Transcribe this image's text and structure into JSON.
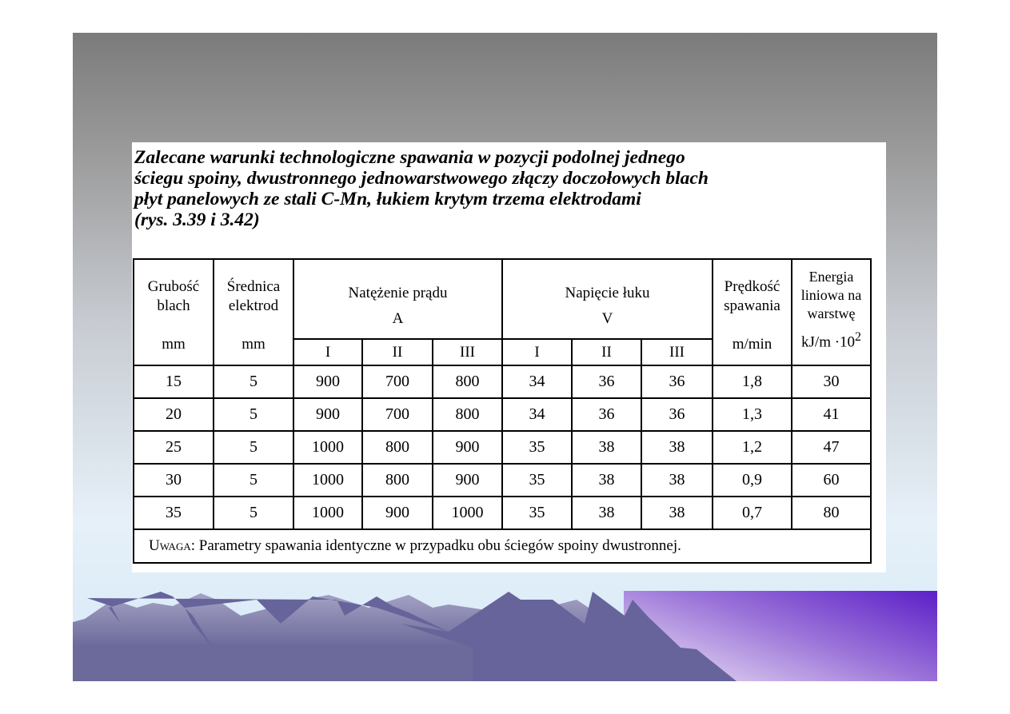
{
  "title_lines": [
    "Zalecane warunki technologiczne spawania w pozycji podolnej jednego",
    "ściegu spoiny, dwustronnego jednowarstwowego złączy doczołowych blach",
    "płyt panelowych ze stali C-Mn, łukiem krytym trzema elektrodami",
    "(rys. 3.39 i 3.42)"
  ],
  "table": {
    "headers": {
      "thickness": {
        "line1": "Grubość",
        "line2": "blach",
        "unit": "mm"
      },
      "diameter": {
        "line1": "Średnica",
        "line2": "elektrod",
        "unit": "mm"
      },
      "current": {
        "label": "Natężenie prądu",
        "unit": "A",
        "sub": [
          "I",
          "II",
          "III"
        ]
      },
      "voltage": {
        "label": "Napięcie łuku",
        "unit": "V",
        "sub": [
          "I",
          "II",
          "III"
        ]
      },
      "speed": {
        "line1": "Prędkość",
        "line2": "spawania",
        "unit": "m/min"
      },
      "energy": {
        "line1": "Energia",
        "line2": "liniowa na",
        "line3": "warstwę",
        "unit": "kJ/m ·10",
        "unit_sup": "2"
      }
    },
    "rows": [
      [
        "15",
        "5",
        "900",
        "700",
        "800",
        "34",
        "36",
        "36",
        "1,8",
        "30"
      ],
      [
        "20",
        "5",
        "900",
        "700",
        "800",
        "34",
        "36",
        "36",
        "1,3",
        "41"
      ],
      [
        "25",
        "5",
        "1000",
        "800",
        "900",
        "35",
        "38",
        "38",
        "1,2",
        "47"
      ],
      [
        "30",
        "5",
        "1000",
        "800",
        "900",
        "35",
        "38",
        "38",
        "0,9",
        "60"
      ],
      [
        "35",
        "5",
        "1000",
        "900",
        "1000",
        "35",
        "38",
        "38",
        "0,7",
        "80"
      ]
    ],
    "note_label": "Uwaga:",
    "note_text": " Parametry spawania identyczne w przypadku obu ściegów spoiny dwustronnej."
  },
  "colors": {
    "sea": "#5c1fc8",
    "mountain": "#6a6898",
    "mountain_light": "#9a98bc"
  }
}
